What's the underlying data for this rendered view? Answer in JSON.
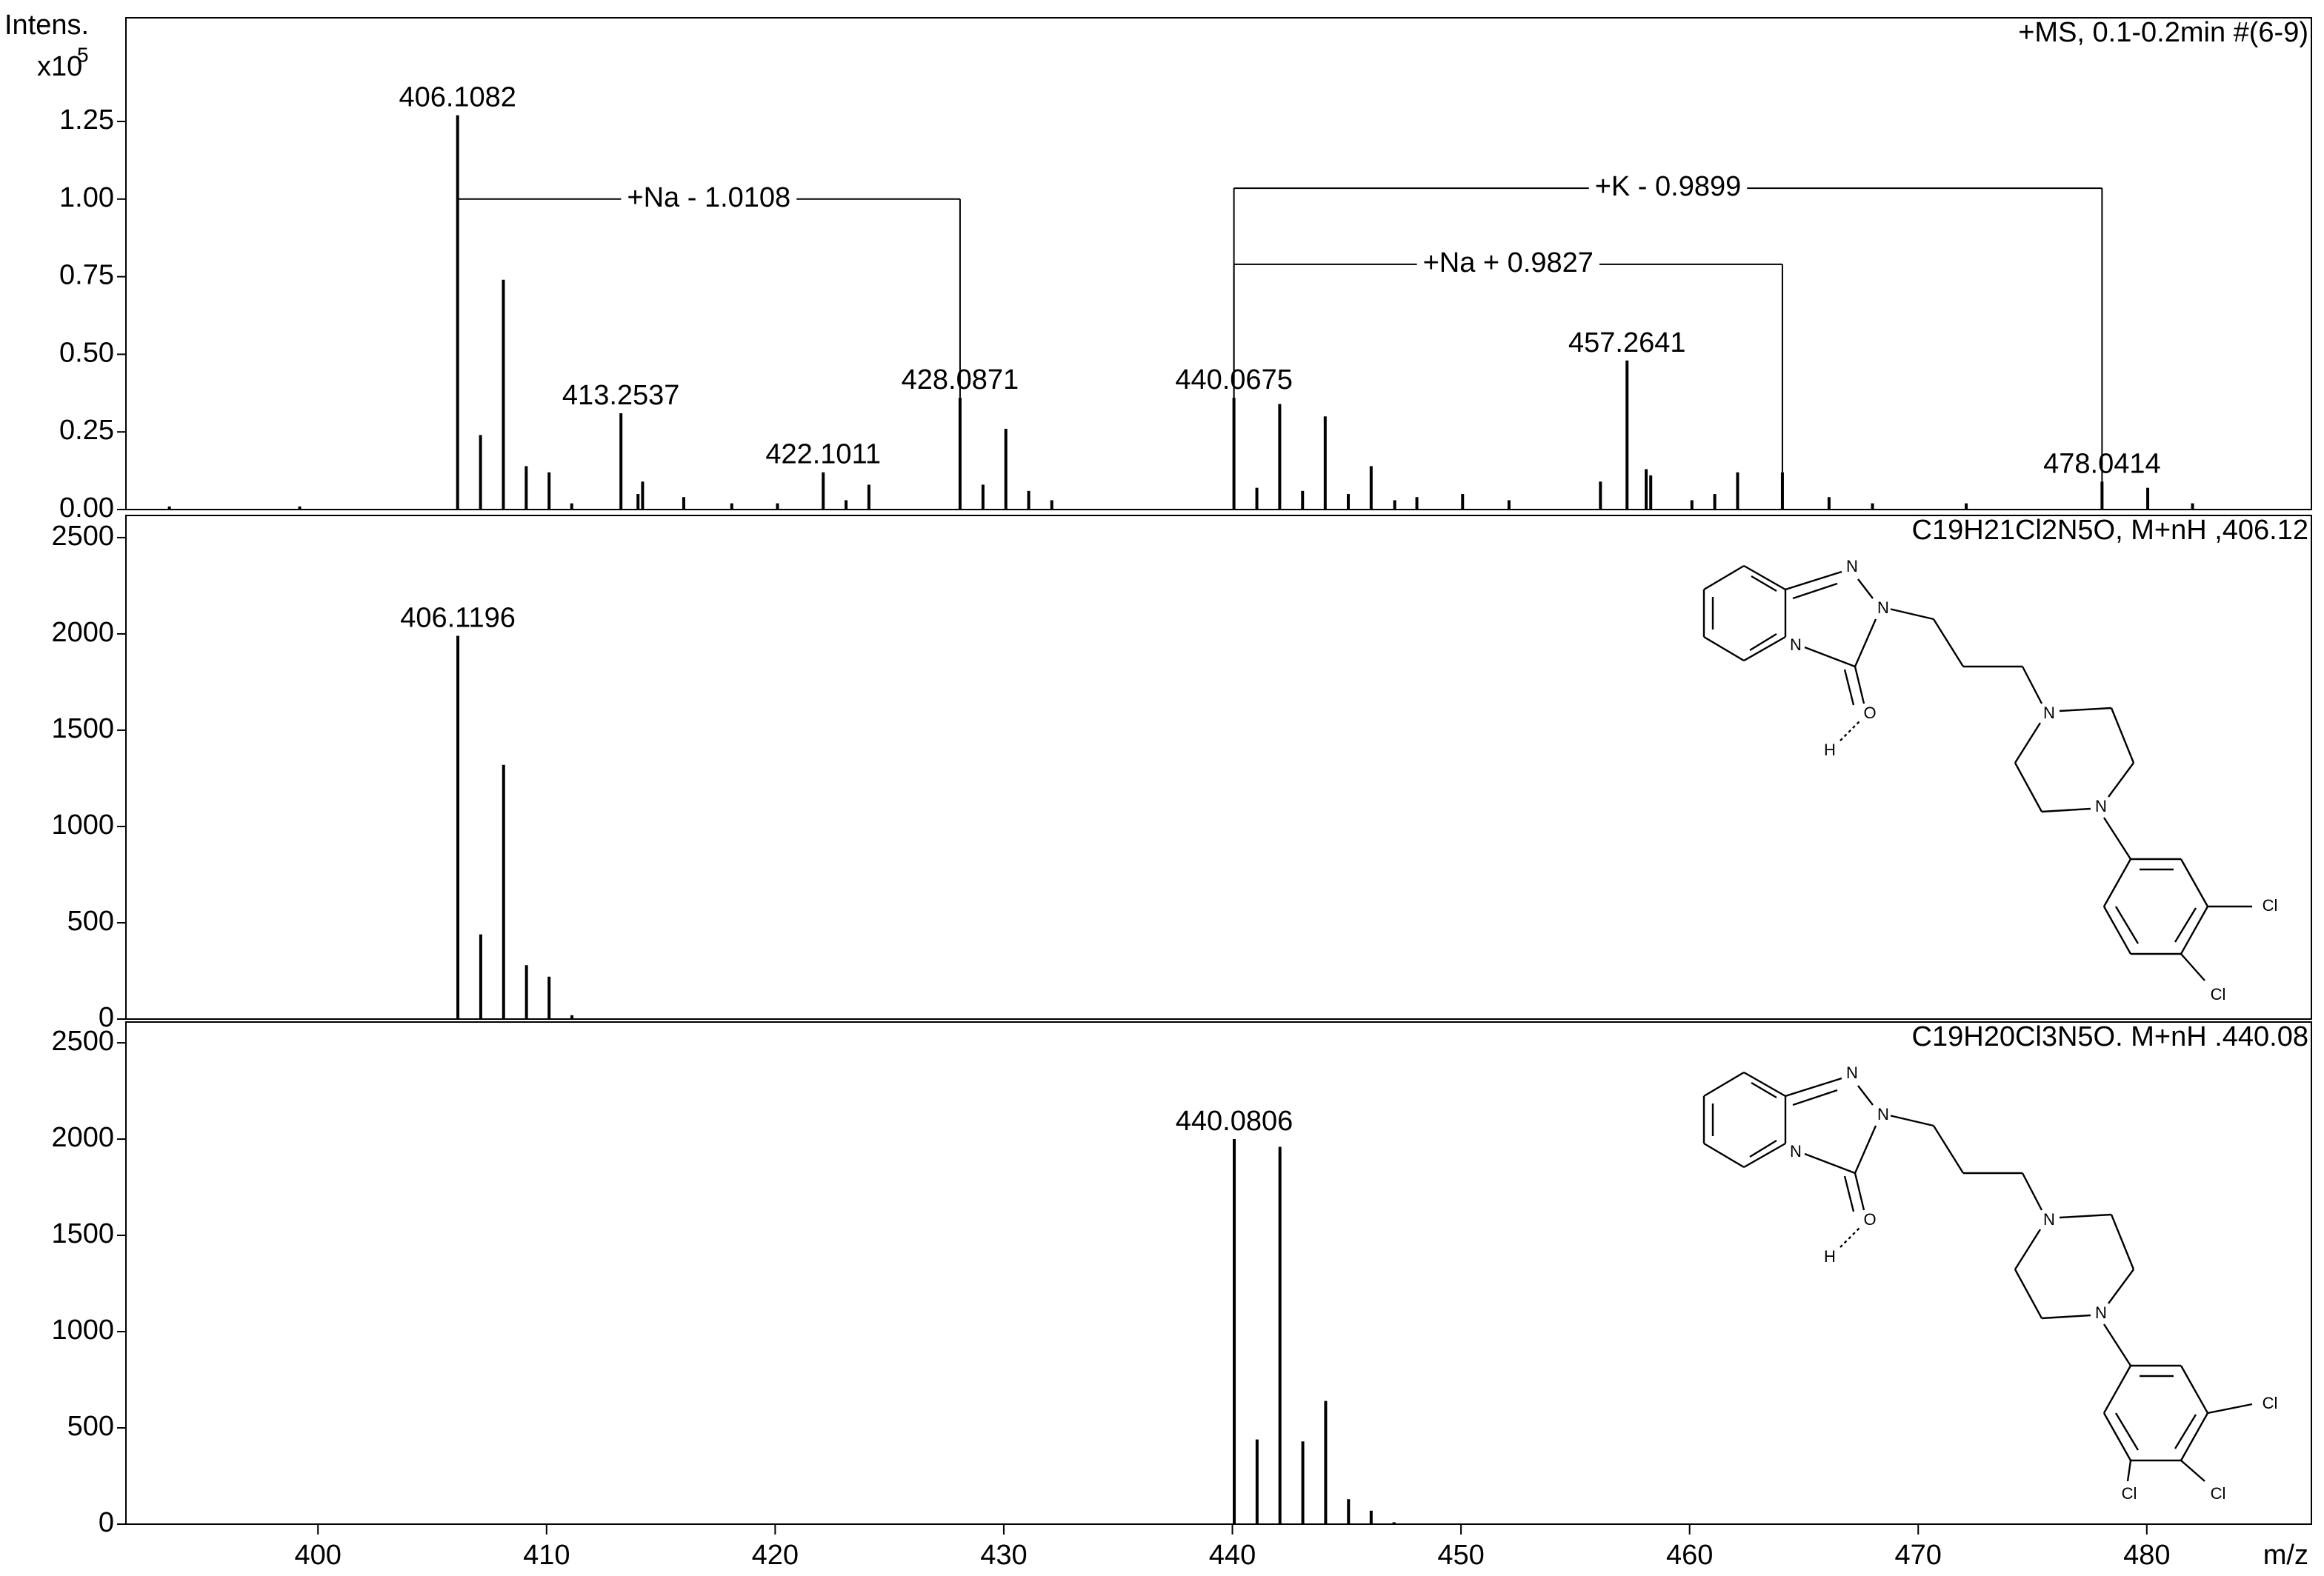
{
  "chart_data": [
    {
      "type": "bar",
      "color": "#000000",
      "y_label": "Intens.",
      "y_multiplier": "x10",
      "y_exponent": "5",
      "title": "+MS, 0.1-0.2min #(6-9)",
      "xlim": [
        391.6,
        487.2
      ],
      "ylim": [
        0,
        1.584
      ],
      "yticks": [
        {
          "value": 0,
          "label": "0.00"
        },
        {
          "value": 0.25,
          "label": "0.25"
        },
        {
          "value": 0.5,
          "label": "0.50"
        },
        {
          "value": 0.75,
          "label": "0.75"
        },
        {
          "value": 1,
          "label": "1.00"
        },
        {
          "value": 1.25,
          "label": "1.25"
        }
      ],
      "x": [
        393.5,
        399.2,
        406.1082,
        407.11,
        408.11,
        409.11,
        410.11,
        411.1,
        413.2537,
        414.0,
        414.2,
        416.0,
        418.1,
        420.1,
        422.1011,
        423.1,
        424.1,
        428.0871,
        429.09,
        430.09,
        431.09,
        432.1,
        440.0675,
        441.07,
        442.07,
        443.07,
        444.06,
        445.07,
        446.07,
        447.1,
        448.07,
        450.07,
        452.1,
        456.1,
        457.2641,
        458.1,
        458.3,
        460.1,
        461.1,
        462.1,
        464.06,
        466.1,
        468.0,
        472.1,
        478.0414,
        480.04,
        482.0
      ],
      "values": [
        0.01,
        0.01,
        1.27,
        0.24,
        0.74,
        0.14,
        0.12,
        0.02,
        0.31,
        0.05,
        0.09,
        0.04,
        0.02,
        0.02,
        0.12,
        0.03,
        0.08,
        0.36,
        0.08,
        0.26,
        0.06,
        0.03,
        0.36,
        0.07,
        0.34,
        0.06,
        0.3,
        0.05,
        0.14,
        0.03,
        0.04,
        0.05,
        0.03,
        0.09,
        0.48,
        0.13,
        0.11,
        0.03,
        0.05,
        0.12,
        0.12,
        0.04,
        0.02,
        0.02,
        0.09,
        0.07,
        0.02
      ],
      "x_labels": [
        null,
        null,
        "406.1082",
        null,
        null,
        null,
        null,
        null,
        "413.2537",
        null,
        null,
        null,
        null,
        null,
        "422.1011",
        null,
        null,
        "428.0871",
        null,
        null,
        null,
        null,
        "440.0675",
        null,
        null,
        null,
        null,
        null,
        null,
        null,
        null,
        null,
        null,
        null,
        "457.2641",
        null,
        null,
        null,
        null,
        null,
        null,
        null,
        null,
        null,
        "478.0414",
        null,
        null
      ],
      "annotations": [
        {
          "text": "+Na - 1.0108",
          "x1": 406.1082,
          "x2": 428.0871,
          "y": 1.0
        },
        {
          "text": "+K - 0.9899",
          "x1": 440.0675,
          "x2": 478.0414,
          "y": 1.035
        },
        {
          "text": "+Na + 0.9827",
          "x1": 440.0675,
          "x2": 464.06,
          "y": 0.79
        }
      ]
    },
    {
      "type": "bar",
      "color": "#000000",
      "title": "C19H21Cl2N5O, M+nH ,406.12",
      "xlim": [
        391.6,
        487.2
      ],
      "ylim": [
        0,
        2615
      ],
      "yticks": [
        0,
        500,
        1000,
        1500,
        2000,
        2500
      ],
      "x": [
        406.1196,
        407.12,
        408.12,
        409.12,
        410.11,
        411.11
      ],
      "values": [
        1990,
        440,
        1320,
        280,
        220,
        20
      ],
      "x_labels": [
        "406.1196",
        null,
        null,
        null,
        null,
        null
      ],
      "structure_labels": [
        "N",
        "N",
        "N",
        "O",
        "H",
        "N",
        "N",
        "Cl",
        "Cl"
      ]
    },
    {
      "type": "bar",
      "color": "#000000",
      "title": "C19H20Cl3N5O. M+nH .440.08",
      "x_label": "m/z",
      "xlim": [
        391.6,
        487.2
      ],
      "ylim": [
        0,
        2608
      ],
      "yticks": [
        0,
        500,
        1000,
        1500,
        2000,
        2500
      ],
      "xticks": [
        400,
        410,
        420,
        430,
        440,
        450,
        460,
        470,
        480
      ],
      "x": [
        440.0806,
        441.08,
        442.08,
        443.08,
        444.08,
        445.08,
        446.07,
        447.07
      ],
      "values": [
        2000,
        440,
        1960,
        430,
        640,
        130,
        70,
        10
      ],
      "x_labels": [
        "440.0806",
        null,
        null,
        null,
        null,
        null,
        null,
        null
      ],
      "structure_labels": [
        "N",
        "N",
        "N",
        "O",
        "H",
        "N",
        "N",
        "Cl",
        "Cl",
        "Cl"
      ]
    }
  ]
}
